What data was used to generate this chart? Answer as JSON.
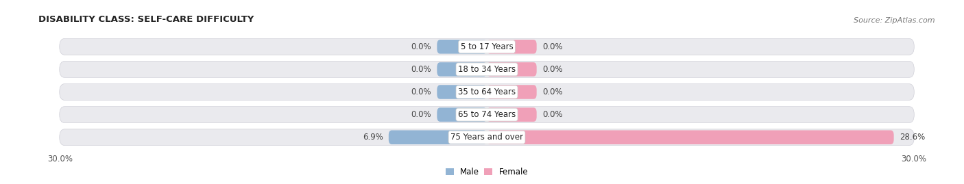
{
  "title": "DISABILITY CLASS: SELF-CARE DIFFICULTY",
  "source": "Source: ZipAtlas.com",
  "categories": [
    "5 to 17 Years",
    "18 to 34 Years",
    "35 to 64 Years",
    "65 to 74 Years",
    "75 Years and over"
  ],
  "male_values": [
    0.0,
    0.0,
    0.0,
    0.0,
    6.9
  ],
  "female_values": [
    0.0,
    0.0,
    0.0,
    0.0,
    28.6
  ],
  "male_color": "#92b4d4",
  "female_color": "#f0a0b8",
  "bar_row_bg": "#e8e8ec",
  "xlim": 30.0,
  "min_bar_val": 3.5,
  "bar_height": 0.62,
  "bg_bar_height": 0.72,
  "title_fontsize": 9.5,
  "label_fontsize": 8.5,
  "category_fontsize": 8.5,
  "tick_fontsize": 8.5,
  "source_fontsize": 8,
  "legend_male": "Male",
  "legend_female": "Female",
  "background_color": "#ffffff",
  "row_bg_color": "#eaeaee",
  "row_gap_color": "#ffffff"
}
